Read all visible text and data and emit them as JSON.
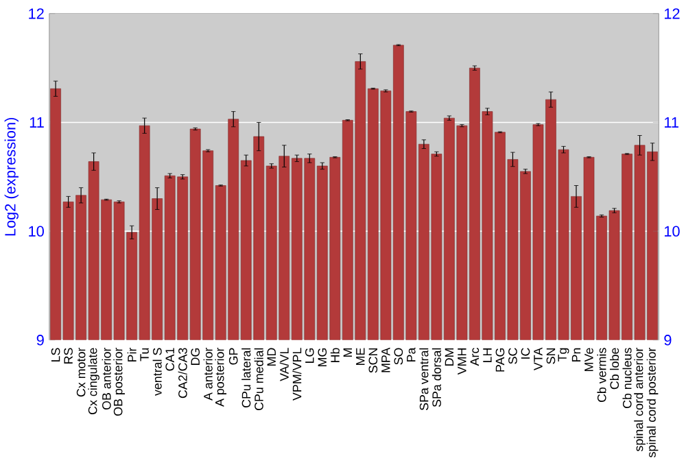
{
  "chart_data": {
    "type": "bar",
    "ylabel": "Log2 (expression)",
    "categories": [
      "LS",
      "RS",
      "Cx motor",
      "Cx cingulate",
      "OB anterior",
      "OB posterior",
      "Pir",
      "Tu",
      "ventral S",
      "CA1",
      "CA2/CA3",
      "DG",
      "A anterior",
      "A posterior",
      "GP",
      "CPu lateral",
      "CPu medial",
      "MD",
      "VA/VL",
      "VPM/VPL",
      "LG",
      "MG",
      "Hb",
      "M",
      "ME",
      "SCN",
      "MPA",
      "SO",
      "Pa",
      "SPa ventral",
      "SPa dorsal",
      "DM",
      "VMH",
      "Arc",
      "LH",
      "PAG",
      "SC",
      "IC",
      "VTA",
      "SN",
      "Tg",
      "Pn",
      "MVe",
      "Cb vermis",
      "Cb lobe",
      "Cb nucleus",
      "spinal cord anterior",
      "spinal cord posterior"
    ],
    "values": [
      11.31,
      10.27,
      10.33,
      10.64,
      10.29,
      10.27,
      9.99,
      10.97,
      10.3,
      10.51,
      10.5,
      10.94,
      10.74,
      10.42,
      11.03,
      10.65,
      10.87,
      10.6,
      10.69,
      10.67,
      10.67,
      10.6,
      10.68,
      11.02,
      11.56,
      11.31,
      11.29,
      11.71,
      11.1,
      10.8,
      10.71,
      11.04,
      10.97,
      11.5,
      11.1,
      10.91,
      10.66,
      10.55,
      10.98,
      11.21,
      10.75,
      10.32,
      10.68,
      10.14,
      10.19,
      10.71,
      10.79,
      10.73
    ],
    "errors": [
      0.07,
      0.05,
      0.07,
      0.08,
      0.005,
      0.01,
      0.06,
      0.07,
      0.1,
      0.02,
      0.02,
      0.01,
      0.01,
      0.005,
      0.07,
      0.05,
      0.13,
      0.02,
      0.1,
      0.03,
      0.04,
      0.03,
      0.005,
      0.005,
      0.07,
      0.005,
      0.01,
      0.005,
      0.005,
      0.04,
      0.02,
      0.02,
      0.01,
      0.02,
      0.03,
      0.005,
      0.065,
      0.02,
      0.01,
      0.07,
      0.03,
      0.1,
      0.005,
      0.01,
      0.02,
      0.005,
      0.09,
      0.08
    ],
    "color": "#b33a3a",
    "ylim": [
      9,
      12
    ],
    "yticks": [
      9,
      10,
      11,
      12
    ],
    "y2lim": [
      9,
      12
    ],
    "y2ticks": [
      9,
      10,
      11,
      12
    ],
    "grid": "y"
  }
}
